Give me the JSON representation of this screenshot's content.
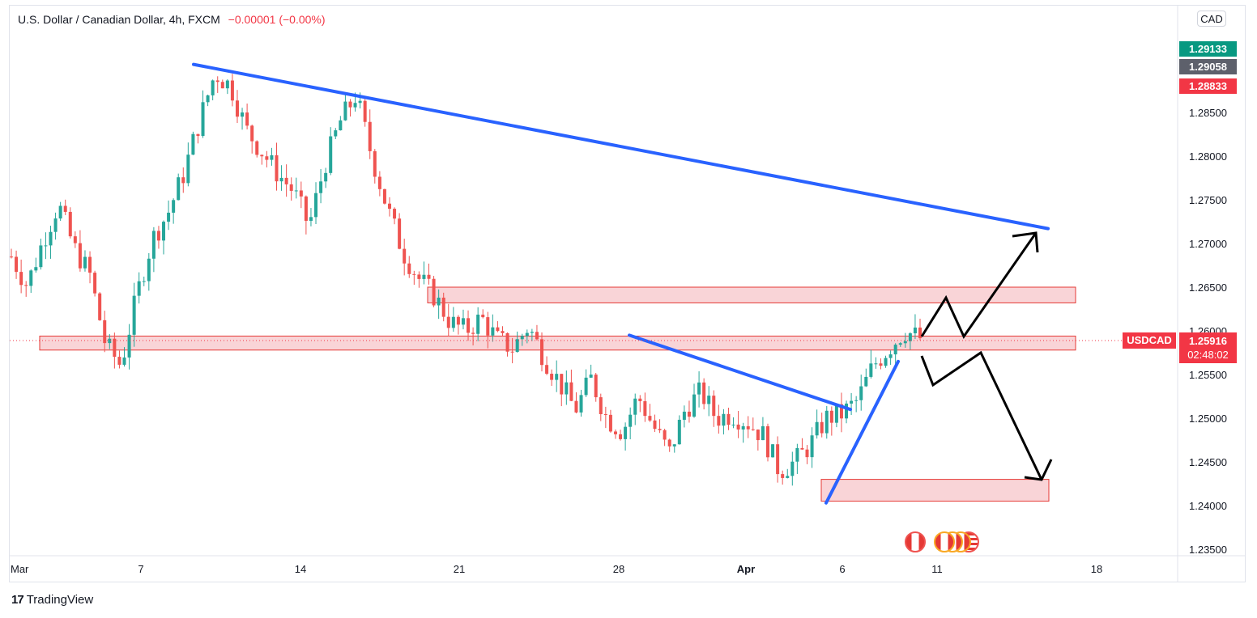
{
  "header": {
    "title": "U.S. Dollar / Canadian Dollar, 4h, FXCM",
    "change": "−0.00001 (−0.00%)"
  },
  "currency_button": "CAD",
  "price_tags": {
    "high": {
      "value": "1.29133",
      "color": "#089981"
    },
    "mid": {
      "value": "1.29058",
      "color": "#5d606b"
    },
    "low": {
      "value": "1.28833",
      "color": "#f23645"
    }
  },
  "last_price": {
    "symbol": "USDCAD",
    "price": "1.25916",
    "countdown": "02:48:02",
    "color": "#f23645"
  },
  "brand": "TradingView",
  "events": [
    "canada-flag-icon",
    "canada-flag-icon",
    "canada-flag-icon",
    "canada-flag-icon",
    "usa-flag-icon"
  ],
  "colors": {
    "up": "#26a69a",
    "down": "#ef5350",
    "trendline": "#2962ff",
    "zone_fill": "#f7c6c9",
    "zone_border": "#e53935",
    "arrow": "#000000"
  },
  "chart_data": {
    "type": "candlestick",
    "symbol": "USDCAD",
    "timeframe": "4h",
    "ylim": [
      1.2345,
      1.2965
    ],
    "y_ticks": [
      "1.23500",
      "1.24000",
      "1.24500",
      "1.25000",
      "1.25500",
      "1.26000",
      "1.26500",
      "1.27000",
      "1.27500",
      "1.28000",
      "1.28500",
      "1.29000"
    ],
    "x_labels": [
      "Mar",
      "7",
      "14",
      "21",
      "28",
      "Apr",
      "6",
      "11",
      "18"
    ],
    "series": [
      {
        "segment": "Mar 1 – Mar 9 rally",
        "values": [
          1.2685,
          1.2652,
          1.2702,
          1.2745,
          1.2695,
          1.2665,
          1.2585,
          1.256,
          1.264,
          1.2705,
          1.2735,
          1.278,
          1.284,
          1.2895
        ]
      },
      {
        "segment": "Mar 9 – Mar 21 decline",
        "values": [
          1.288,
          1.283,
          1.2805,
          1.278,
          1.276,
          1.272,
          1.279,
          1.284,
          1.287,
          1.28,
          1.274,
          1.269,
          1.266,
          1.264,
          1.261,
          1.26
        ]
      },
      {
        "segment": "Mar 21 – Apr 5 decline",
        "values": [
          1.2615,
          1.259,
          1.258,
          1.2605,
          1.257,
          1.254,
          1.251,
          1.2545,
          1.25,
          1.2485,
          1.2525,
          1.249,
          1.246,
          1.251,
          1.253,
          1.25,
          1.2505,
          1.2495,
          1.248,
          1.244
        ]
      },
      {
        "segment": "Apr 5 – Apr 8 recovery",
        "values": [
          1.245,
          1.247,
          1.25,
          1.2505,
          1.252,
          1.256,
          1.258,
          1.26,
          1.25916
        ]
      }
    ],
    "resistance_trendline": {
      "from": {
        "x": "Mar 9",
        "y": 1.2905
      },
      "to": {
        "x": "Apr 15",
        "y": 1.2717
      }
    },
    "short_trendline": {
      "from": {
        "x": "Mar 28",
        "y": 1.2595
      },
      "to": {
        "x": "Apr 6",
        "y": 1.251
      }
    },
    "support_trendline": {
      "from": {
        "x": "Apr 5",
        "y": 1.2403
      },
      "to": {
        "x": "Apr 8",
        "y": 1.2565
      }
    },
    "zones": [
      {
        "name": "upper-resistance-zone",
        "low": 1.2632,
        "high": 1.265
      },
      {
        "name": "mid-support-zone",
        "low": 1.2578,
        "high": 1.2594
      },
      {
        "name": "lower-target-zone",
        "low": 1.2405,
        "high": 1.243
      }
    ],
    "projections": [
      "bullish-path-to-1.2717",
      "bearish-path-to-1.2430"
    ],
    "last_price": 1.25916,
    "grid": false
  }
}
